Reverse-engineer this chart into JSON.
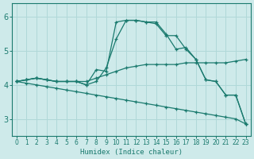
{
  "xlabel": "Humidex (Indice chaleur)",
  "xlim": [
    -0.5,
    23.5
  ],
  "ylim": [
    2.5,
    6.4
  ],
  "yticks": [
    3,
    4,
    5,
    6
  ],
  "xticks": [
    0,
    1,
    2,
    3,
    4,
    5,
    6,
    7,
    8,
    9,
    10,
    11,
    12,
    13,
    14,
    15,
    16,
    17,
    18,
    19,
    20,
    21,
    22,
    23
  ],
  "bg_color": "#ceeaea",
  "line_color": "#1a7a6e",
  "grid_color": "#b0d8d8",
  "lines": [
    {
      "x": [
        0,
        1,
        2,
        3,
        4,
        5,
        6,
        7,
        8,
        9,
        10,
        11,
        12,
        13,
        14,
        15,
        16,
        17,
        18,
        19,
        20,
        21,
        22,
        23
      ],
      "y": [
        4.1,
        4.15,
        4.2,
        4.15,
        4.1,
        4.1,
        4.1,
        4.1,
        4.2,
        4.3,
        4.4,
        4.5,
        4.55,
        4.6,
        4.6,
        4.6,
        4.6,
        4.65,
        4.65,
        4.65,
        4.65,
        4.65,
        4.7,
        4.75
      ]
    },
    {
      "x": [
        0,
        1,
        2,
        3,
        4,
        5,
        6,
        7,
        8,
        9,
        10,
        11,
        12,
        13,
        14,
        15,
        16,
        17,
        18,
        19,
        20,
        21,
        22,
        23
      ],
      "y": [
        4.1,
        4.15,
        4.2,
        4.15,
        4.1,
        4.1,
        4.1,
        4.0,
        4.1,
        4.5,
        5.35,
        5.9,
        5.9,
        5.85,
        5.85,
        5.5,
        5.05,
        5.1,
        4.75,
        4.15,
        4.1,
        3.7,
        3.7,
        2.85
      ]
    },
    {
      "x": [
        0,
        1,
        2,
        3,
        4,
        5,
        6,
        7,
        8,
        9,
        10,
        11,
        12,
        13,
        14,
        15,
        16,
        17,
        18,
        19,
        20,
        21,
        22,
        23
      ],
      "y": [
        4.1,
        4.15,
        4.2,
        4.15,
        4.1,
        4.1,
        4.1,
        4.0,
        4.45,
        4.4,
        5.85,
        5.9,
        5.9,
        5.85,
        5.8,
        5.45,
        5.45,
        5.05,
        4.75,
        4.15,
        4.1,
        3.7,
        3.7,
        2.85
      ]
    },
    {
      "x": [
        0,
        1,
        2,
        3,
        4,
        5,
        6,
        7,
        8,
        9,
        10,
        11,
        12,
        13,
        14,
        15,
        16,
        17,
        18,
        19,
        20,
        21,
        22,
        23
      ],
      "y": [
        4.1,
        4.05,
        4.0,
        3.95,
        3.9,
        3.85,
        3.8,
        3.75,
        3.7,
        3.65,
        3.6,
        3.55,
        3.5,
        3.45,
        3.4,
        3.35,
        3.3,
        3.25,
        3.2,
        3.15,
        3.1,
        3.05,
        3.0,
        2.85
      ]
    }
  ]
}
